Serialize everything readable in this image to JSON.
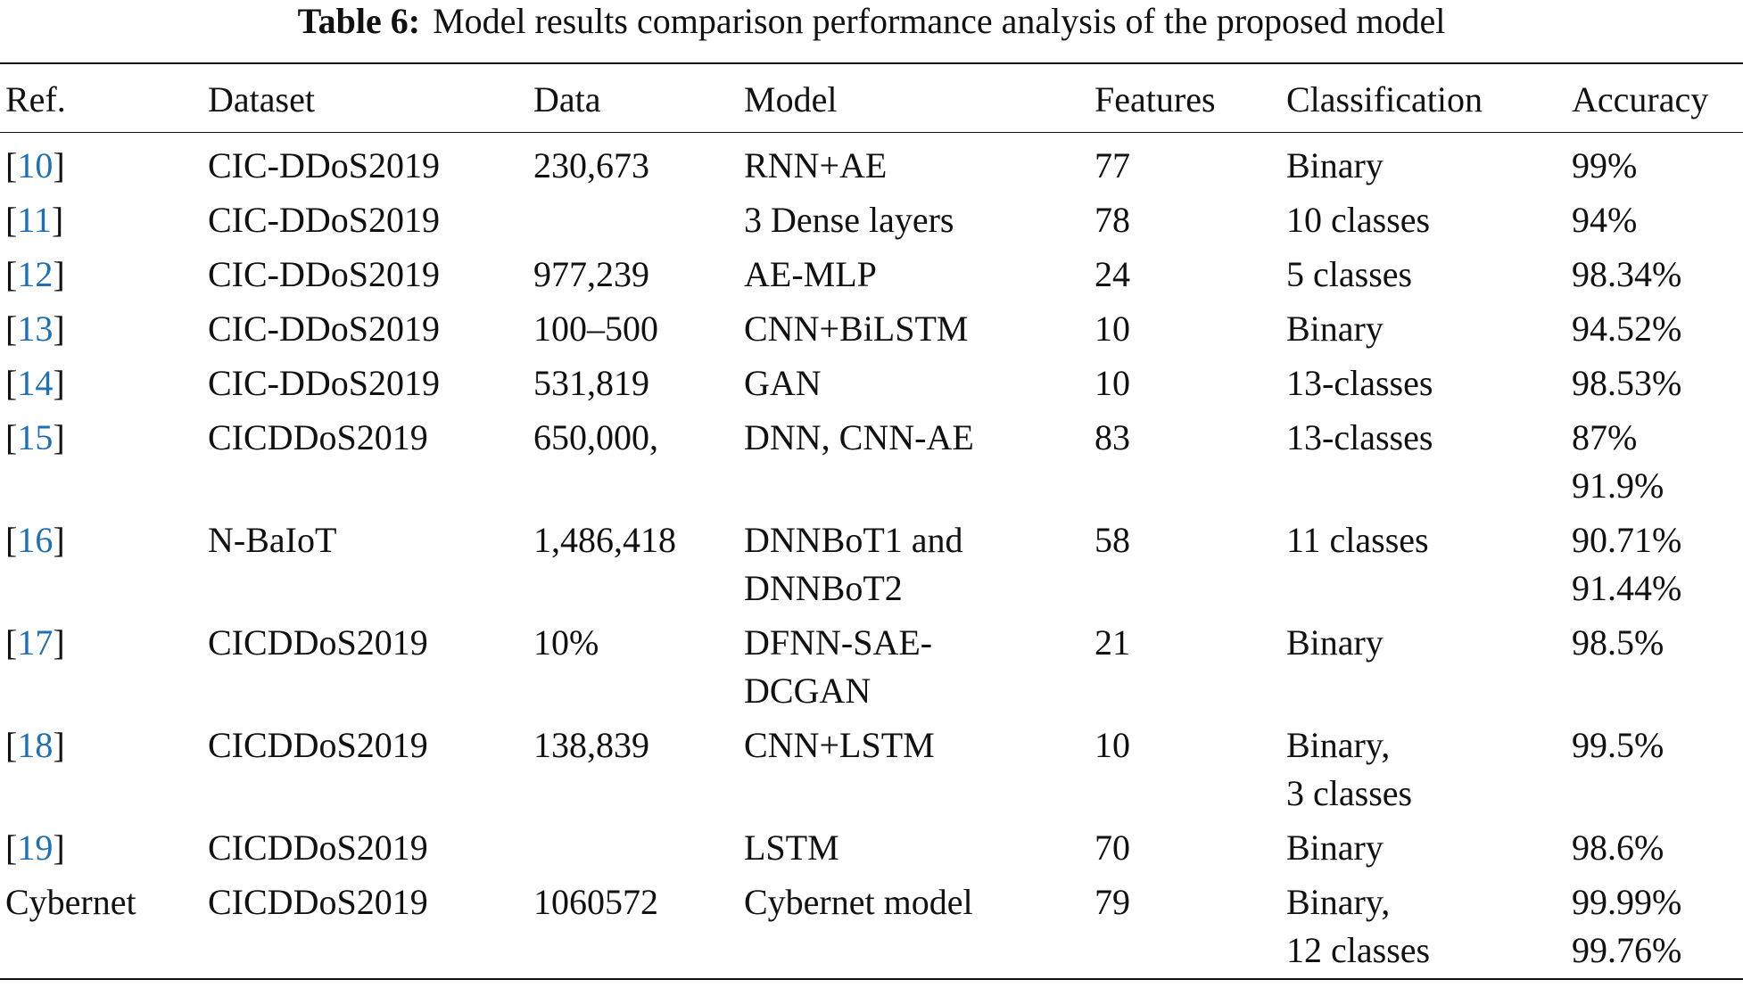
{
  "caption": {
    "label": "Table 6:",
    "text": "Model results comparison performance analysis of the proposed model"
  },
  "table": {
    "header": [
      "Ref.",
      "Dataset",
      "Data",
      "Model",
      "Features",
      "Classification",
      "Accuracy"
    ],
    "rows": [
      {
        "ref": [
          "[",
          "10",
          "]"
        ],
        "cells": [
          [
            "CIC-DDoS2019"
          ],
          [
            "230,673"
          ],
          [
            "RNN+AE"
          ],
          [
            "77"
          ],
          [
            "Binary"
          ],
          [
            "99%"
          ]
        ]
      },
      {
        "ref": [
          "[",
          "11",
          "]"
        ],
        "cells": [
          [
            "CIC-DDoS2019"
          ],
          [],
          [
            "3 Dense layers"
          ],
          [
            "78"
          ],
          [
            "10 classes"
          ],
          [
            "94%"
          ]
        ]
      },
      {
        "ref": [
          "[",
          "12",
          "]"
        ],
        "cells": [
          [
            "CIC-DDoS2019"
          ],
          [
            "977,239"
          ],
          [
            "AE-MLP"
          ],
          [
            "24"
          ],
          [
            "5 classes"
          ],
          [
            "98.34%"
          ]
        ]
      },
      {
        "ref": [
          "[",
          "13",
          "]"
        ],
        "cells": [
          [
            "CIC-DDoS2019"
          ],
          [
            "100–500"
          ],
          [
            "CNN+BiLSTM"
          ],
          [
            "10"
          ],
          [
            "Binary"
          ],
          [
            "94.52%"
          ]
        ]
      },
      {
        "ref": [
          "[",
          "14",
          "]"
        ],
        "cells": [
          [
            "CIC-DDoS2019"
          ],
          [
            "531,819"
          ],
          [
            "GAN"
          ],
          [
            "10"
          ],
          [
            "13-classes"
          ],
          [
            "98.53%"
          ]
        ]
      },
      {
        "ref": [
          "[",
          "15",
          "]"
        ],
        "cells": [
          [
            "CICDDoS2019"
          ],
          [
            "650,000,"
          ],
          [
            "DNN, CNN-AE"
          ],
          [
            "83"
          ],
          [
            "13-classes"
          ],
          [
            "87%",
            "91.9%"
          ]
        ]
      },
      {
        "ref": [
          "[",
          "16",
          "]"
        ],
        "cells": [
          [
            "N-BaIoT"
          ],
          [
            "1,486,418"
          ],
          [
            "DNNBoT1 and",
            "DNNBoT2"
          ],
          [
            "58"
          ],
          [
            "11 classes"
          ],
          [
            "90.71%",
            "91.44%"
          ]
        ]
      },
      {
        "ref": [
          "[",
          "17",
          "]"
        ],
        "cells": [
          [
            "CICDDoS2019"
          ],
          [
            "10%"
          ],
          [
            "DFNN-SAE-",
            "DCGAN"
          ],
          [
            "21"
          ],
          [
            "Binary"
          ],
          [
            "98.5%"
          ]
        ]
      },
      {
        "ref": [
          "[",
          "18",
          "]"
        ],
        "cells": [
          [
            "CICDDoS2019"
          ],
          [
            "138,839"
          ],
          [
            "CNN+LSTM"
          ],
          [
            "10"
          ],
          [
            "Binary,",
            "3 classes"
          ],
          [
            "99.5%"
          ]
        ]
      },
      {
        "ref": [
          "[",
          "19",
          "]"
        ],
        "cells": [
          [
            "CICDDoS2019"
          ],
          [],
          [
            "LSTM"
          ],
          [
            "70"
          ],
          [
            "Binary"
          ],
          [
            "98.6%"
          ]
        ]
      },
      {
        "ref": [
          "Cybernet"
        ],
        "cells": [
          [
            "CICDDoS2019"
          ],
          [
            "1060572"
          ],
          [
            "Cybernet model"
          ],
          [
            "79"
          ],
          [
            "Binary,",
            "12 classes"
          ],
          [
            "99.99%",
            "99.76%"
          ]
        ]
      }
    ]
  }
}
